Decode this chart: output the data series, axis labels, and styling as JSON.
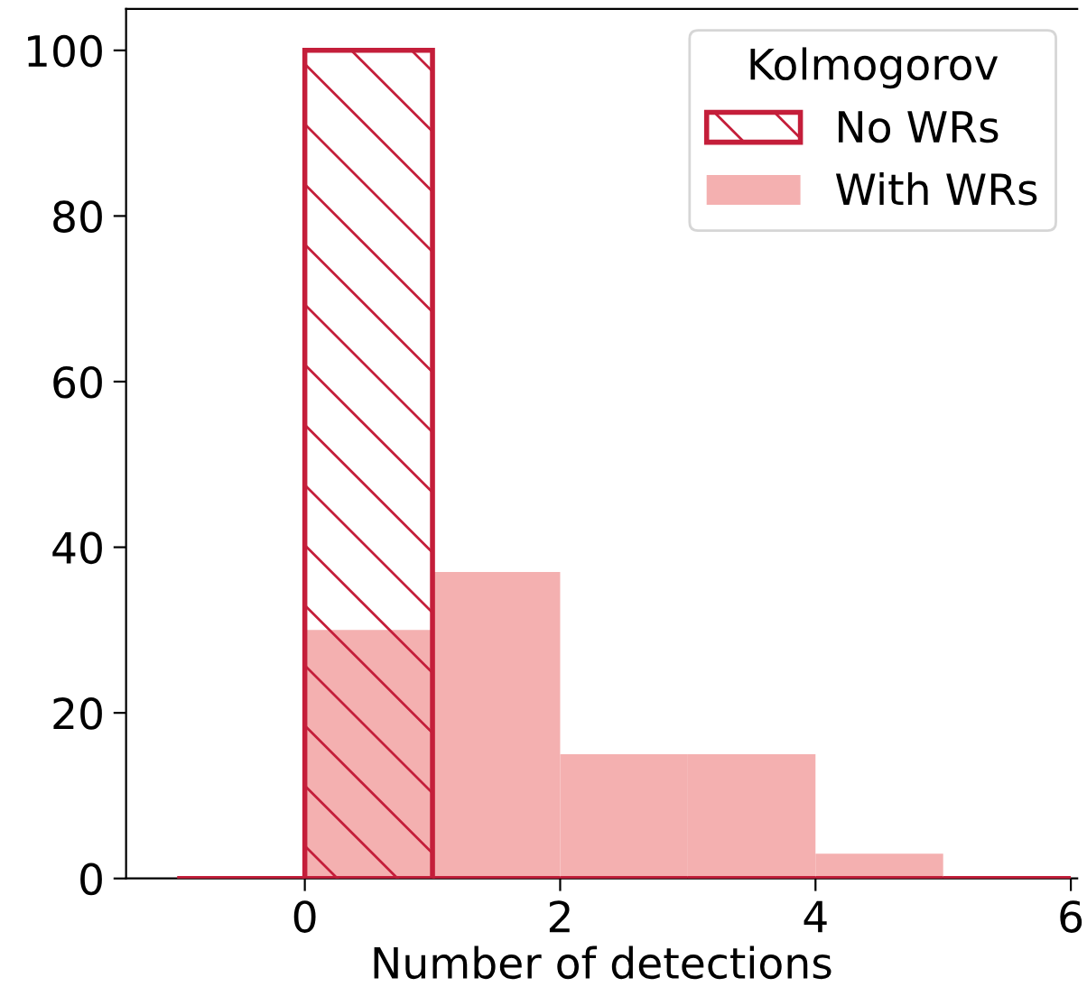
{
  "chart_data": {
    "type": "histogram",
    "xlabel": "Number of detections",
    "legend_title": "Kolmogorov",
    "bins": [
      -1,
      0,
      1,
      2,
      3,
      4,
      5,
      6
    ],
    "series": [
      {
        "name": "No WRs",
        "color": "#c41e3a",
        "values": [
          0,
          100,
          0,
          0,
          0,
          0,
          0
        ]
      },
      {
        "name": "With WRs",
        "color": "#f4b0b0",
        "values": [
          0,
          30,
          37,
          15,
          15,
          3,
          0
        ]
      }
    ],
    "xlim": [
      -1.4,
      6.05
    ],
    "ylim": [
      0,
      105
    ],
    "xticks": [
      0,
      2,
      4,
      6
    ],
    "yticks": [
      0,
      20,
      40,
      60,
      80,
      100
    ],
    "grid": false,
    "legend": "top right"
  }
}
